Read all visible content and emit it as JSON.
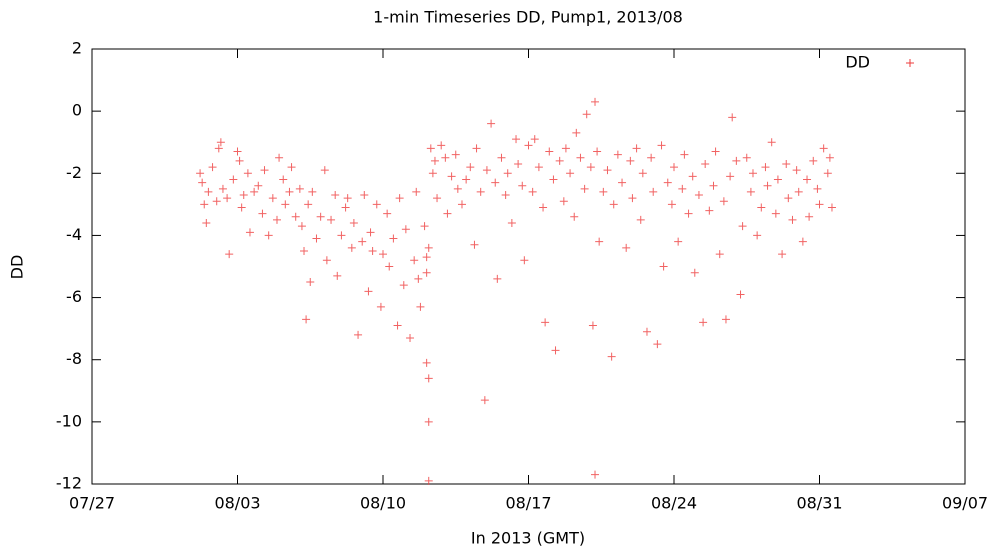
{
  "chart_data": {
    "type": "scatter",
    "title": "1-min Timeseries DD, Pump1, 2013/08",
    "x_label": "In 2013 (GMT)",
    "y_label": "DD",
    "xlim": [
      208,
      250
    ],
    "xticks": [
      {
        "value": 208,
        "label": "07/27"
      },
      {
        "value": 215,
        "label": "08/03"
      },
      {
        "value": 222,
        "label": "08/10"
      },
      {
        "value": 229,
        "label": "08/17"
      },
      {
        "value": 236,
        "label": "08/24"
      },
      {
        "value": 243,
        "label": "08/31"
      },
      {
        "value": 250,
        "label": "09/07"
      }
    ],
    "ylim": [
      -12,
      2
    ],
    "yticks": [
      -12,
      -10,
      -8,
      -6,
      -4,
      -2,
      0,
      2
    ],
    "grid": false,
    "legend": "top-right",
    "series": [
      {
        "name": "DD",
        "color": "#ee3b3b",
        "x": [
          213.2,
          213.3,
          213.4,
          213.5,
          213.6,
          213.8,
          214.0,
          214.1,
          214.2,
          214.3,
          214.5,
          214.6,
          214.8,
          215.0,
          215.1,
          215.2,
          215.3,
          215.5,
          215.6,
          215.8,
          216.0,
          216.2,
          216.3,
          216.5,
          216.7,
          216.9,
          217.0,
          217.2,
          217.3,
          217.5,
          217.6,
          217.8,
          218.0,
          218.1,
          218.2,
          218.3,
          218.4,
          218.5,
          218.6,
          218.8,
          219.0,
          219.2,
          219.3,
          219.5,
          219.7,
          219.8,
          220.0,
          220.2,
          220.3,
          220.5,
          220.6,
          220.8,
          221.0,
          221.1,
          221.3,
          221.4,
          221.5,
          221.7,
          221.9,
          222.0,
          222.2,
          222.3,
          222.5,
          222.7,
          222.8,
          223.0,
          223.1,
          223.3,
          223.5,
          223.6,
          223.7,
          223.8,
          224.0,
          224.1,
          224.1,
          224.1,
          224.2,
          224.2,
          224.2,
          224.2,
          224.3,
          224.4,
          224.5,
          224.6,
          224.8,
          225.0,
          225.1,
          225.3,
          225.5,
          225.6,
          225.8,
          226.0,
          226.2,
          226.4,
          226.5,
          226.7,
          226.9,
          227.0,
          227.2,
          227.4,
          227.5,
          227.7,
          227.9,
          228.0,
          228.2,
          228.4,
          228.5,
          228.7,
          228.8,
          229.0,
          229.2,
          229.3,
          229.5,
          229.7,
          229.8,
          230.0,
          230.2,
          230.3,
          230.5,
          230.7,
          230.8,
          231.0,
          231.2,
          231.3,
          231.5,
          231.7,
          231.8,
          232.0,
          232.1,
          232.2,
          232.2,
          232.3,
          232.4,
          232.6,
          232.8,
          233.0,
          233.1,
          233.3,
          233.5,
          233.7,
          233.9,
          234.0,
          234.2,
          234.4,
          234.5,
          234.7,
          234.9,
          235.0,
          235.2,
          235.4,
          235.5,
          235.7,
          235.9,
          236.0,
          236.2,
          236.4,
          236.5,
          236.7,
          236.9,
          237.0,
          237.2,
          237.4,
          237.5,
          237.7,
          237.9,
          238.0,
          238.2,
          238.4,
          238.5,
          238.7,
          238.8,
          239.0,
          239.2,
          239.3,
          239.5,
          239.7,
          239.8,
          240.0,
          240.2,
          240.4,
          240.5,
          240.7,
          240.9,
          241.0,
          241.2,
          241.4,
          241.5,
          241.7,
          241.9,
          242.0,
          242.2,
          242.4,
          242.5,
          242.7,
          242.9,
          243.0,
          243.2,
          243.4,
          243.5,
          243.6
        ],
        "values": [
          -2.0,
          -2.3,
          -3.0,
          -3.6,
          -2.6,
          -1.8,
          -2.9,
          -1.2,
          -1.0,
          -2.5,
          -2.8,
          -4.6,
          -2.2,
          -1.3,
          -1.6,
          -3.1,
          -2.7,
          -2.0,
          -3.9,
          -2.6,
          -2.4,
          -3.3,
          -1.9,
          -4.0,
          -2.8,
          -3.5,
          -1.5,
          -2.2,
          -3.0,
          -2.6,
          -1.8,
          -3.4,
          -2.5,
          -3.7,
          -4.5,
          -6.7,
          -3.0,
          -5.5,
          -2.6,
          -4.1,
          -3.4,
          -1.9,
          -4.8,
          -3.5,
          -2.7,
          -5.3,
          -4.0,
          -3.1,
          -2.8,
          -4.4,
          -3.6,
          -7.2,
          -4.2,
          -2.7,
          -5.8,
          -3.9,
          -4.5,
          -3.0,
          -6.3,
          -4.6,
          -3.3,
          -5.0,
          -4.1,
          -6.9,
          -2.8,
          -5.6,
          -3.8,
          -7.3,
          -4.8,
          -2.6,
          -5.4,
          -6.3,
          -3.7,
          -8.1,
          -4.7,
          -5.2,
          -8.6,
          -10.0,
          -11.9,
          -4.4,
          -1.2,
          -2.0,
          -1.6,
          -2.8,
          -1.1,
          -1.5,
          -3.3,
          -2.1,
          -1.4,
          -2.5,
          -3.0,
          -2.2,
          -1.8,
          -4.3,
          -1.2,
          -2.6,
          -9.3,
          -1.9,
          -0.4,
          -2.3,
          -5.4,
          -1.5,
          -2.7,
          -2.0,
          -3.6,
          -0.9,
          -1.7,
          -2.4,
          -4.8,
          -1.1,
          -2.6,
          -0.9,
          -1.8,
          -3.1,
          -6.8,
          -1.3,
          -2.2,
          -7.7,
          -1.6,
          -2.9,
          -1.2,
          -2.0,
          -3.4,
          -0.7,
          -1.5,
          -2.5,
          -0.1,
          -1.8,
          -6.9,
          -11.7,
          0.3,
          -1.3,
          -4.2,
          -2.6,
          -1.9,
          -7.9,
          -3.0,
          -1.4,
          -2.3,
          -4.4,
          -1.6,
          -2.8,
          -1.2,
          -3.5,
          -2.0,
          -7.1,
          -1.5,
          -2.6,
          -7.5,
          -1.1,
          -5.0,
          -2.3,
          -3.0,
          -1.8,
          -4.2,
          -2.5,
          -1.4,
          -3.3,
          -2.1,
          -5.2,
          -2.7,
          -6.8,
          -1.7,
          -3.2,
          -2.4,
          -1.3,
          -4.6,
          -2.9,
          -6.7,
          -2.1,
          -0.2,
          -1.6,
          -5.9,
          -3.7,
          -1.5,
          -2.6,
          -2.0,
          -4.0,
          -3.1,
          -1.8,
          -2.4,
          -1.0,
          -3.3,
          -2.2,
          -4.6,
          -1.7,
          -2.8,
          -3.5,
          -1.9,
          -2.6,
          -4.2,
          -2.2,
          -3.4,
          -1.6,
          -2.5,
          -3.0,
          -1.2,
          -2.0,
          -1.5,
          -3.1
        ]
      }
    ]
  }
}
